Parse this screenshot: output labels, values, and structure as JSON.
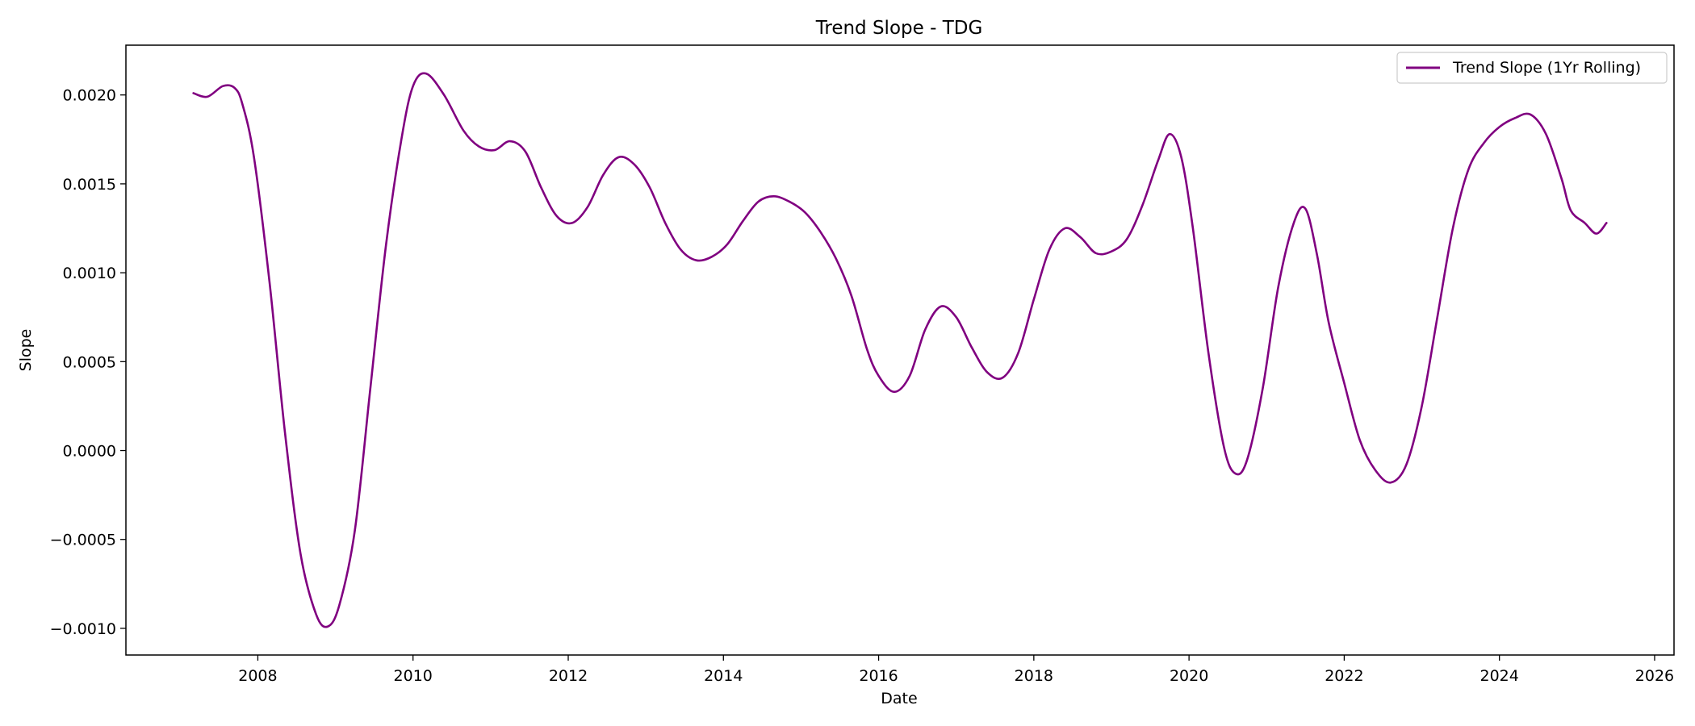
{
  "chart_data": {
    "type": "line",
    "title": "Trend Slope - TDG",
    "xlabel": "Date",
    "ylabel": "Slope",
    "xlim": [
      2006.3,
      2026.25
    ],
    "ylim": [
      -0.00115,
      0.00228
    ],
    "x_ticks": [
      2008,
      2010,
      2012,
      2014,
      2016,
      2018,
      2020,
      2022,
      2024,
      2026
    ],
    "x_tick_labels": [
      "2008",
      "2010",
      "2012",
      "2014",
      "2016",
      "2018",
      "2020",
      "2022",
      "2024",
      "2026"
    ],
    "y_ticks": [
      -0.001,
      -0.0005,
      0.0,
      0.0005,
      0.001,
      0.0015,
      0.002
    ],
    "y_tick_labels": [
      "−0.0010",
      "−0.0005",
      "0.0000",
      "0.0005",
      "0.0010",
      "0.0015",
      "0.0020"
    ],
    "grid": false,
    "legend": {
      "placement": "top-right",
      "entries": [
        "Trend Slope (1Yr Rolling)"
      ]
    },
    "series": [
      {
        "name": "Trend Slope (1Yr Rolling)",
        "color": "#800080",
        "points": [
          [
            2007.17,
            0.00201
          ],
          [
            2007.35,
            0.00199
          ],
          [
            2007.55,
            0.00205
          ],
          [
            2007.7,
            0.00204
          ],
          [
            2007.8,
            0.00195
          ],
          [
            2007.95,
            0.00165
          ],
          [
            2008.15,
            0.00095
          ],
          [
            2008.35,
            0.0001
          ],
          [
            2008.55,
            -0.00058
          ],
          [
            2008.75,
            -0.00092
          ],
          [
            2008.9,
            -0.00099
          ],
          [
            2009.05,
            -0.00087
          ],
          [
            2009.25,
            -0.00045
          ],
          [
            2009.45,
            0.00035
          ],
          [
            2009.65,
            0.00115
          ],
          [
            2009.85,
            0.00175
          ],
          [
            2010.0,
            0.00205
          ],
          [
            2010.17,
            0.00212
          ],
          [
            2010.4,
            0.002
          ],
          [
            2010.65,
            0.0018
          ],
          [
            2010.85,
            0.00171
          ],
          [
            2011.05,
            0.00169
          ],
          [
            2011.25,
            0.00174
          ],
          [
            2011.45,
            0.00168
          ],
          [
            2011.65,
            0.00148
          ],
          [
            2011.85,
            0.00132
          ],
          [
            2012.05,
            0.00128
          ],
          [
            2012.25,
            0.00137
          ],
          [
            2012.45,
            0.00155
          ],
          [
            2012.65,
            0.00165
          ],
          [
            2012.85,
            0.00161
          ],
          [
            2013.05,
            0.00148
          ],
          [
            2013.25,
            0.00128
          ],
          [
            2013.45,
            0.00113
          ],
          [
            2013.65,
            0.00107
          ],
          [
            2013.85,
            0.00109
          ],
          [
            2014.05,
            0.00116
          ],
          [
            2014.25,
            0.00129
          ],
          [
            2014.45,
            0.0014
          ],
          [
            2014.65,
            0.00143
          ],
          [
            2014.85,
            0.0014
          ],
          [
            2015.05,
            0.00134
          ],
          [
            2015.25,
            0.00123
          ],
          [
            2015.45,
            0.00108
          ],
          [
            2015.65,
            0.00087
          ],
          [
            2015.85,
            0.00057
          ],
          [
            2016.0,
            0.00042
          ],
          [
            2016.2,
            0.00033
          ],
          [
            2016.4,
            0.00042
          ],
          [
            2016.6,
            0.00068
          ],
          [
            2016.8,
            0.00081
          ],
          [
            2017.0,
            0.00075
          ],
          [
            2017.2,
            0.00058
          ],
          [
            2017.4,
            0.00044
          ],
          [
            2017.6,
            0.00041
          ],
          [
            2017.8,
            0.00055
          ],
          [
            2018.0,
            0.00085
          ],
          [
            2018.2,
            0.00113
          ],
          [
            2018.4,
            0.00125
          ],
          [
            2018.6,
            0.0012
          ],
          [
            2018.8,
            0.00111
          ],
          [
            2019.0,
            0.00112
          ],
          [
            2019.2,
            0.00119
          ],
          [
            2019.4,
            0.00138
          ],
          [
            2019.6,
            0.00163
          ],
          [
            2019.75,
            0.00178
          ],
          [
            2019.9,
            0.00165
          ],
          [
            2020.05,
            0.00125
          ],
          [
            2020.25,
            0.00055
          ],
          [
            2020.45,
            2e-05
          ],
          [
            2020.6,
            -0.00013
          ],
          [
            2020.75,
            -5e-05
          ],
          [
            2020.95,
            0.00035
          ],
          [
            2021.15,
            0.00092
          ],
          [
            2021.35,
            0.00128
          ],
          [
            2021.5,
            0.00136
          ],
          [
            2021.65,
            0.0011
          ],
          [
            2021.8,
            0.00072
          ],
          [
            2022.0,
            0.00038
          ],
          [
            2022.2,
            6e-05
          ],
          [
            2022.4,
            -0.00011
          ],
          [
            2022.6,
            -0.00018
          ],
          [
            2022.8,
            -8e-05
          ],
          [
            2023.0,
            0.00025
          ],
          [
            2023.2,
            0.00075
          ],
          [
            2023.4,
            0.00125
          ],
          [
            2023.6,
            0.00158
          ],
          [
            2023.8,
            0.00173
          ],
          [
            2024.0,
            0.00182
          ],
          [
            2024.2,
            0.00187
          ],
          [
            2024.4,
            0.00189
          ],
          [
            2024.6,
            0.00178
          ],
          [
            2024.8,
            0.00153
          ],
          [
            2024.92,
            0.00135
          ],
          [
            2025.1,
            0.00128
          ],
          [
            2025.25,
            0.00122
          ],
          [
            2025.38,
            0.00128
          ]
        ]
      }
    ]
  }
}
